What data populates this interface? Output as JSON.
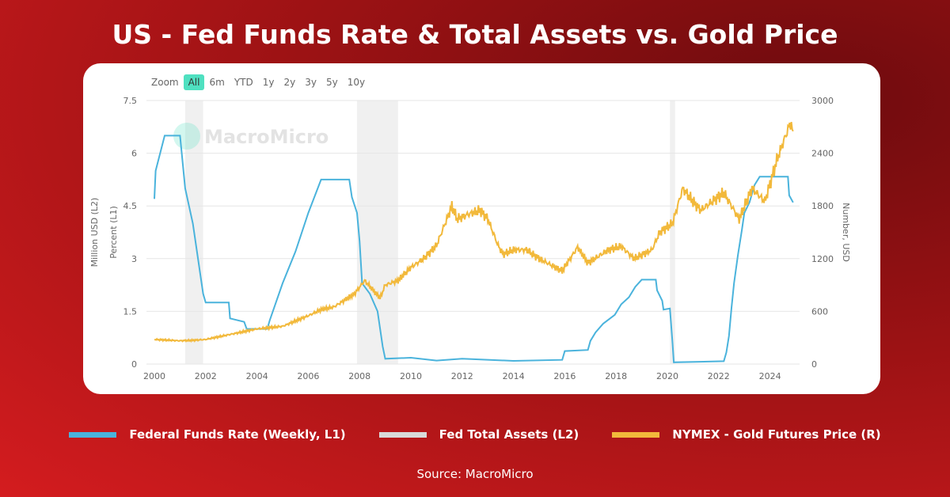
{
  "title": "US - Fed Funds Rate & Total Assets vs. Gold Price",
  "zoom": {
    "label": "Zoom",
    "options": [
      "All",
      "6m",
      "YTD",
      "1y",
      "2y",
      "3y",
      "5y",
      "10y"
    ],
    "active": "All"
  },
  "watermark": "MacroMicro",
  "source": "Source: MacroMicro",
  "colors": {
    "fed_funds": "#4ab3dc",
    "total_assets": "#d9d9d9",
    "gold": "#f2b93b",
    "recession": "#f0f0f0"
  },
  "chart_data": {
    "type": "line",
    "xlim": [
      2000,
      2025
    ],
    "x_ticks": [
      "2000",
      "2002",
      "2004",
      "2006",
      "2008",
      "2010",
      "2012",
      "2014",
      "2016",
      "2018",
      "2020",
      "2022",
      "2024"
    ],
    "y_left": {
      "label_1": "Million USD (L2)",
      "label_2": "Percent (L1)",
      "lim": [
        0,
        7.5
      ],
      "ticks": [
        "0",
        "1.5",
        "3",
        "4.5",
        "6",
        "7.5"
      ]
    },
    "y_right": {
      "label": "Number, USD",
      "lim": [
        0,
        3000
      ],
      "ticks": [
        "0",
        "600",
        "1200",
        "1800",
        "2400",
        "3000"
      ]
    },
    "grid": true,
    "legend_position": "bottom",
    "recessions": [
      [
        2001.2,
        2001.9
      ],
      [
        2007.9,
        2009.5
      ],
      [
        2020.1,
        2020.3
      ]
    ],
    "series": [
      {
        "name": "Federal Funds Rate (Weekly, L1)",
        "axis": "left",
        "points": [
          [
            2000,
            4.7
          ],
          [
            2000.05,
            5.5
          ],
          [
            2000.4,
            6.5
          ],
          [
            2001,
            6.5
          ],
          [
            2001.2,
            5.0
          ],
          [
            2001.5,
            4.0
          ],
          [
            2001.7,
            3.0
          ],
          [
            2001.9,
            2.0
          ],
          [
            2002,
            1.75
          ],
          [
            2002.9,
            1.75
          ],
          [
            2002.95,
            1.3
          ],
          [
            2003.5,
            1.2
          ],
          [
            2003.6,
            1.0
          ],
          [
            2004.4,
            1.0
          ],
          [
            2004.5,
            1.25
          ],
          [
            2005,
            2.3
          ],
          [
            2005.5,
            3.2
          ],
          [
            2006,
            4.3
          ],
          [
            2006.5,
            5.25
          ],
          [
            2007.6,
            5.25
          ],
          [
            2007.7,
            4.75
          ],
          [
            2007.9,
            4.3
          ],
          [
            2008,
            3.5
          ],
          [
            2008.1,
            2.3
          ],
          [
            2008.4,
            2.0
          ],
          [
            2008.7,
            1.5
          ],
          [
            2008.9,
            0.5
          ],
          [
            2009,
            0.15
          ],
          [
            2010,
            0.18
          ],
          [
            2011,
            0.1
          ],
          [
            2012,
            0.15
          ],
          [
            2014,
            0.09
          ],
          [
            2015.9,
            0.12
          ],
          [
            2016,
            0.37
          ],
          [
            2016.9,
            0.4
          ],
          [
            2017,
            0.66
          ],
          [
            2017.2,
            0.9
          ],
          [
            2017.5,
            1.15
          ],
          [
            2017.95,
            1.4
          ],
          [
            2018.2,
            1.7
          ],
          [
            2018.5,
            1.9
          ],
          [
            2018.75,
            2.2
          ],
          [
            2019,
            2.4
          ],
          [
            2019.55,
            2.4
          ],
          [
            2019.6,
            2.1
          ],
          [
            2019.8,
            1.8
          ],
          [
            2019.85,
            1.55
          ],
          [
            2020.1,
            1.58
          ],
          [
            2020.2,
            0.6
          ],
          [
            2020.25,
            0.05
          ],
          [
            2022.2,
            0.08
          ],
          [
            2022.3,
            0.33
          ],
          [
            2022.4,
            0.8
          ],
          [
            2022.5,
            1.6
          ],
          [
            2022.6,
            2.3
          ],
          [
            2022.75,
            3.1
          ],
          [
            2022.9,
            3.8
          ],
          [
            2023,
            4.3
          ],
          [
            2023.2,
            4.6
          ],
          [
            2023.4,
            5.1
          ],
          [
            2023.6,
            5.33
          ],
          [
            2024.7,
            5.33
          ],
          [
            2024.75,
            4.8
          ],
          [
            2024.9,
            4.6
          ]
        ]
      },
      {
        "name": "Fed Total Assets (L2)",
        "axis": "left",
        "points": []
      },
      {
        "name": "NYMEX  - Gold Futures Price (R)",
        "axis": "right",
        "points": [
          [
            2000,
            280
          ],
          [
            2001,
            265
          ],
          [
            2001.5,
            270
          ],
          [
            2002,
            280
          ],
          [
            2003,
            340
          ],
          [
            2004,
            400
          ],
          [
            2005,
            430
          ],
          [
            2006,
            550
          ],
          [
            2006.5,
            620
          ],
          [
            2007,
            650
          ],
          [
            2007.8,
            800
          ],
          [
            2008.2,
            950
          ],
          [
            2008.8,
            750
          ],
          [
            2009,
            900
          ],
          [
            2009.5,
            950
          ],
          [
            2010,
            1100
          ],
          [
            2010.5,
            1200
          ],
          [
            2011,
            1350
          ],
          [
            2011.6,
            1800
          ],
          [
            2011.8,
            1650
          ],
          [
            2012.2,
            1700
          ],
          [
            2012.7,
            1750
          ],
          [
            2013,
            1650
          ],
          [
            2013.4,
            1350
          ],
          [
            2013.6,
            1250
          ],
          [
            2014,
            1300
          ],
          [
            2014.5,
            1300
          ],
          [
            2015,
            1200
          ],
          [
            2015.9,
            1060
          ],
          [
            2016.5,
            1330
          ],
          [
            2016.9,
            1150
          ],
          [
            2017.7,
            1300
          ],
          [
            2018.2,
            1340
          ],
          [
            2018.7,
            1200
          ],
          [
            2019.4,
            1300
          ],
          [
            2019.7,
            1500
          ],
          [
            2020.2,
            1600
          ],
          [
            2020.6,
            2000
          ],
          [
            2021,
            1850
          ],
          [
            2021.3,
            1750
          ],
          [
            2022.2,
            1950
          ],
          [
            2022.8,
            1650
          ],
          [
            2023.3,
            2000
          ],
          [
            2023.8,
            1850
          ],
          [
            2024,
            2050
          ],
          [
            2024.3,
            2350
          ],
          [
            2024.8,
            2750
          ],
          [
            2024.9,
            2650
          ]
        ]
      }
    ]
  }
}
